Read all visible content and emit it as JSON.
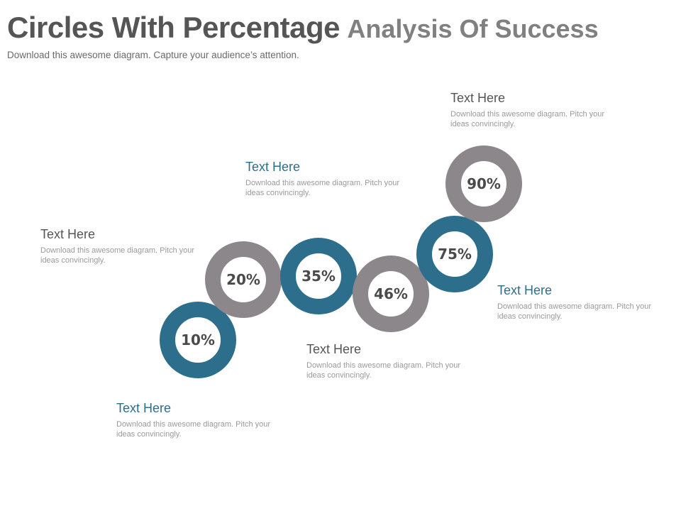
{
  "title_main": "Circles With Percentage",
  "title_rest": "Analysis Of Success",
  "subtitle": "Download this awesome diagram. Capture your audience’s attention.",
  "colors": {
    "teal": "#2c6e8c",
    "gray": "#8c878a",
    "heading_teal": "#2c6e8c",
    "heading_gray": "#555555"
  },
  "circles": [
    {
      "label": "10%",
      "value": 10,
      "color": "teal"
    },
    {
      "label": "20%",
      "value": 20,
      "color": "gray"
    },
    {
      "label": "35%",
      "value": 35,
      "color": "teal"
    },
    {
      "label": "46%",
      "value": 46,
      "color": "gray"
    },
    {
      "label": "75%",
      "value": 75,
      "color": "teal"
    },
    {
      "label": "90%",
      "value": 90,
      "color": "gray"
    }
  ],
  "callouts": [
    {
      "heading": "Text Here",
      "body": "Download this awesome diagram. Pitch your ideas convincingly.",
      "color": "teal"
    },
    {
      "heading": "Text Here",
      "body": "Download this awesome diagram. Pitch your ideas convincingly.",
      "color": "gray"
    },
    {
      "heading": "Text Here",
      "body": "Download this awesome diagram. Pitch your ideas convincingly.",
      "color": "teal"
    },
    {
      "heading": "Text Here",
      "body": "Download this awesome diagram. Pitch your ideas convincingly.",
      "color": "gray"
    },
    {
      "heading": "Text Here",
      "body": "Download this awesome diagram. Pitch your ideas convincingly.",
      "color": "teal"
    },
    {
      "heading": "Text Here",
      "body": "Download this awesome diagram. Pitch your ideas convincingly.",
      "color": "gray"
    }
  ]
}
